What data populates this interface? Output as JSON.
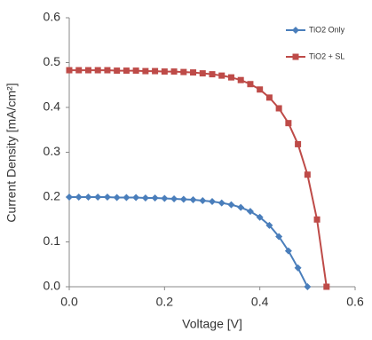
{
  "chart_data": {
    "type": "line",
    "xlabel": "Voltage [V]",
    "ylabel": "Current Density [mA/cm²]",
    "x": [
      0,
      0.02,
      0.04,
      0.06,
      0.08,
      0.1,
      0.12,
      0.14,
      0.16,
      0.18,
      0.2,
      0.22,
      0.24,
      0.26,
      0.28,
      0.3,
      0.32,
      0.34,
      0.36,
      0.38,
      0.4,
      0.42,
      0.44,
      0.46,
      0.48,
      0.5,
      0.52,
      0.54
    ],
    "series": [
      {
        "name": "TiO2 Only",
        "color": "#4a7ebb",
        "marker": "diamond",
        "values": [
          0.2,
          0.2,
          0.2,
          0.2,
          0.2,
          0.199,
          0.199,
          0.199,
          0.198,
          0.198,
          0.197,
          0.196,
          0.195,
          0.194,
          0.192,
          0.19,
          0.187,
          0.183,
          0.177,
          0.168,
          0.155,
          0.137,
          0.112,
          0.08,
          0.042,
          0,
          null,
          null
        ]
      },
      {
        "name": "TiO2 + SL",
        "color": "#be4b48",
        "marker": "square",
        "values": [
          0.483,
          0.483,
          0.483,
          0.483,
          0.483,
          0.482,
          0.482,
          0.482,
          0.481,
          0.481,
          0.48,
          0.48,
          0.479,
          0.478,
          0.476,
          0.474,
          0.471,
          0.467,
          0.461,
          0.452,
          0.44,
          0.422,
          0.398,
          0.365,
          0.318,
          0.25,
          0.15,
          0
        ]
      }
    ],
    "xlim": [
      0,
      0.6
    ],
    "xticks": [
      {
        "value": 0,
        "label": "0.0"
      },
      0.2,
      0.4,
      0.6
    ],
    "ylim": [
      0,
      0.6
    ],
    "yticks": [
      {
        "value": 0,
        "label": "0.0"
      },
      0.1,
      0.2,
      0.3,
      0.4,
      0.5,
      0.6
    ],
    "grid": false,
    "legend": "top-right"
  }
}
